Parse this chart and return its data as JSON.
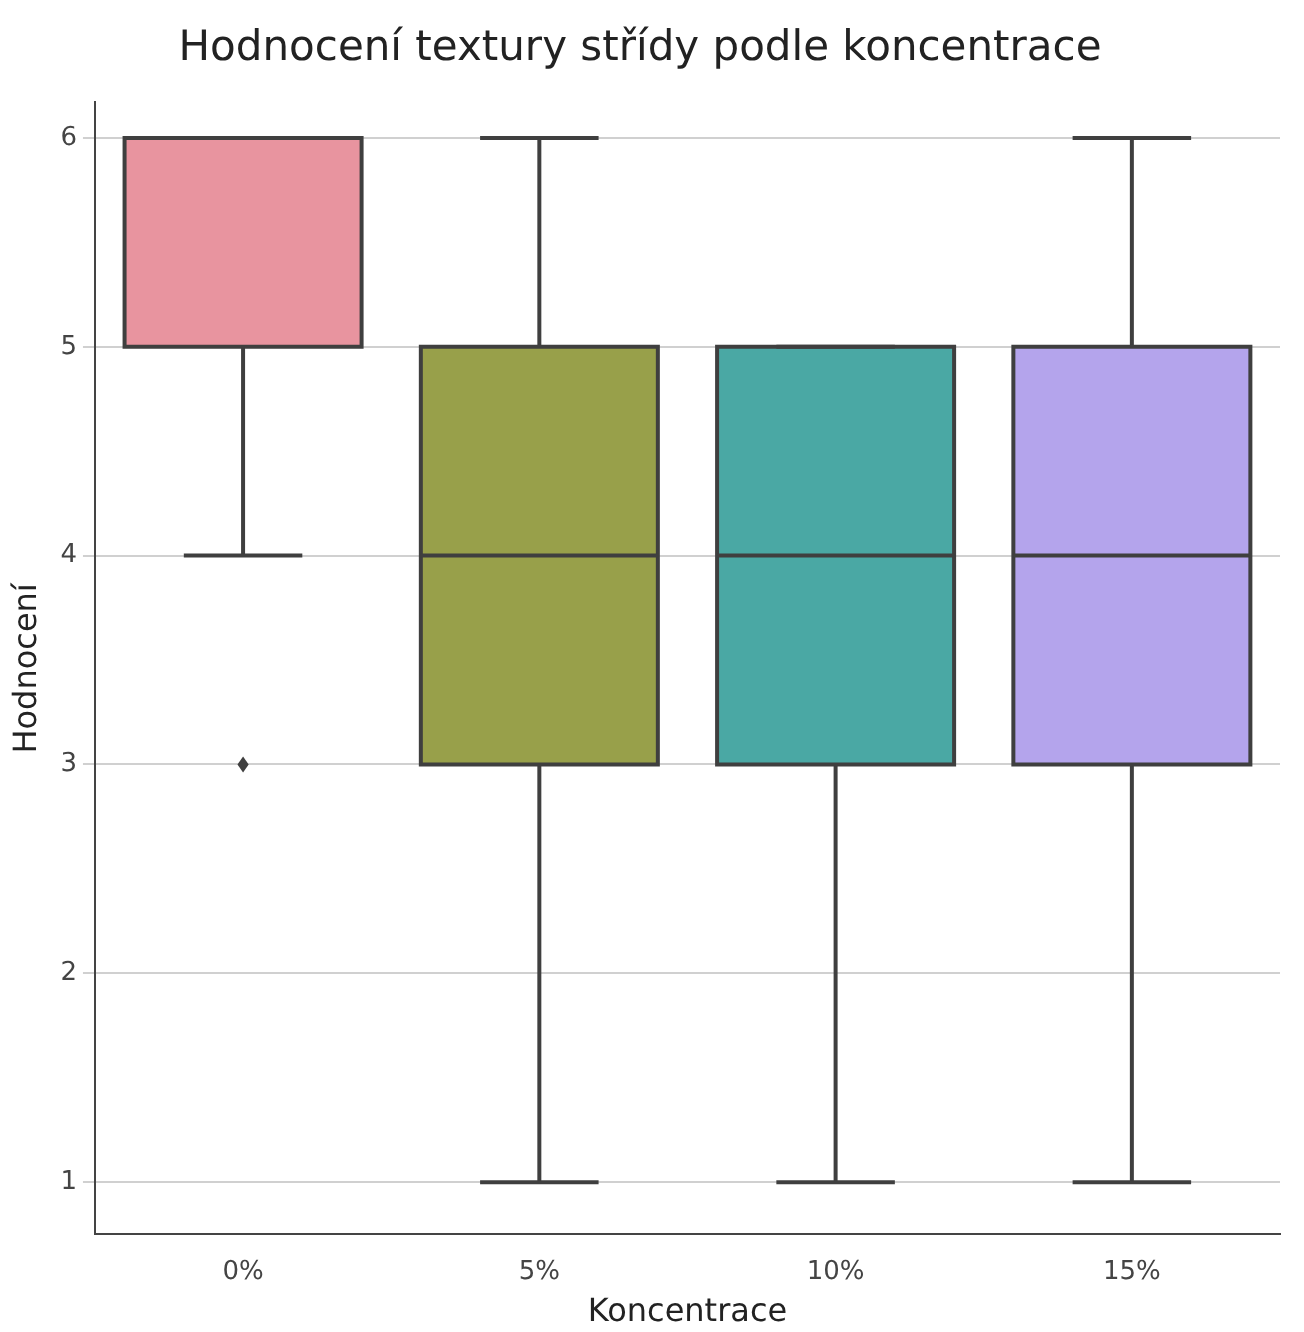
{
  "chart_data": {
    "type": "box",
    "title": "Hodnocení textury střídy podle koncentrace",
    "xlabel": "Koncentrace",
    "ylabel": "Hodnocení",
    "categories": [
      "0%",
      "5%",
      "10%",
      "15%"
    ],
    "boxes": [
      {
        "low": 4,
        "q1": 5,
        "median": 6,
        "q3": 6,
        "high": 6,
        "outliers": [
          3
        ]
      },
      {
        "low": 1,
        "q1": 3,
        "median": 4,
        "q3": 5,
        "high": 6
      },
      {
        "low": 1,
        "q1": 3,
        "median": 4,
        "q3": 5,
        "high": 5
      },
      {
        "low": 1,
        "q1": 3,
        "median": 4,
        "q3": 5,
        "high": 6
      }
    ],
    "colors": [
      "#e8949f",
      "#98a04a",
      "#4aa8a4",
      "#b4a4ec"
    ],
    "ylim": [
      0.75,
      6.17
    ],
    "yticks": [
      1,
      2,
      3,
      4,
      5,
      6
    ],
    "grid": "y"
  }
}
